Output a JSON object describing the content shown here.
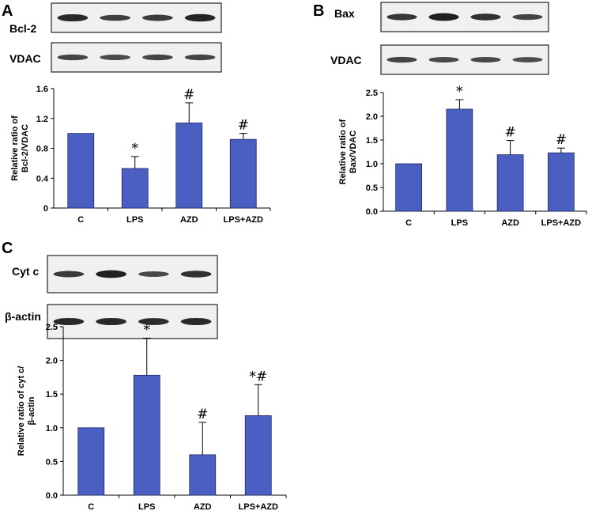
{
  "panels": {
    "A": {
      "letter": "A",
      "blots": [
        {
          "label": "Bcl-2",
          "band_intensity": [
            0.85,
            0.6,
            0.65,
            0.9
          ]
        },
        {
          "label": "VDAC",
          "band_intensity": [
            0.55,
            0.5,
            0.55,
            0.55
          ]
        }
      ]
    },
    "B": {
      "letter": "B",
      "blots": [
        {
          "label": "Bax",
          "band_intensity": [
            0.7,
            0.95,
            0.75,
            0.55
          ]
        },
        {
          "label": "VDAC",
          "band_intensity": [
            0.55,
            0.5,
            0.5,
            0.45
          ]
        }
      ]
    },
    "C": {
      "letter": "C",
      "blots": [
        {
          "label": "Cyt c",
          "band_intensity": [
            0.65,
            0.95,
            0.5,
            0.75
          ]
        },
        {
          "label": "β-actin",
          "band_intensity": [
            0.85,
            0.85,
            0.8,
            0.85
          ]
        }
      ]
    }
  },
  "colors": {
    "bar_fill": "#4a5fc1",
    "bar_edge": "#1f2a66"
  },
  "chart_data": [
    {
      "type": "bar",
      "categories": [
        "C",
        "LPS",
        "AZD",
        "LPS+AZD"
      ],
      "values": [
        1.0,
        0.53,
        1.14,
        0.92
      ],
      "errors": [
        0,
        0.16,
        0.27,
        0.08
      ],
      "significance": [
        "",
        "*",
        "#",
        "#"
      ],
      "ylabel_line1": "Relative ratio of",
      "ylabel_line2": "Bcl-2/VDAC",
      "ylim": [
        0,
        1.6
      ],
      "yticks": [
        "0",
        "0.4",
        "0.8",
        "1.2",
        "1.6"
      ],
      "ytick_values": [
        0,
        0.4,
        0.8,
        1.2,
        1.6
      ]
    },
    {
      "type": "bar",
      "categories": [
        "C",
        "LPS",
        "AZD",
        "LPS+AZD"
      ],
      "values": [
        1.0,
        2.15,
        1.19,
        1.23
      ],
      "errors": [
        0,
        0.2,
        0.3,
        0.1
      ],
      "significance": [
        "",
        "*",
        "#",
        "#"
      ],
      "ylabel_line1": "Relative ratio of",
      "ylabel_line2": "Bax/VDAC",
      "ylim": [
        0,
        2.5
      ],
      "yticks": [
        "0.0",
        "0.5",
        "1.0",
        "1.5",
        "2.0",
        "2.5"
      ],
      "ytick_values": [
        0,
        0.5,
        1.0,
        1.5,
        2.0,
        2.5
      ]
    },
    {
      "type": "bar",
      "categories": [
        "C",
        "LPS",
        "AZD",
        "LPS+AZD"
      ],
      "values": [
        1.0,
        1.78,
        0.6,
        1.18
      ],
      "errors": [
        0,
        0.55,
        0.48,
        0.46
      ],
      "significance": [
        "",
        "*",
        "#",
        "*#"
      ],
      "ylabel_line1": "Relative ratio of cyt c/",
      "ylabel_line2": "β-actin",
      "ylim": [
        0,
        2.5
      ],
      "yticks": [
        "0.0",
        "0.5",
        "1.0",
        "1.5",
        "2.0",
        "2.5"
      ],
      "ytick_values": [
        0,
        0.5,
        1.0,
        1.5,
        2.0,
        2.5
      ]
    }
  ]
}
